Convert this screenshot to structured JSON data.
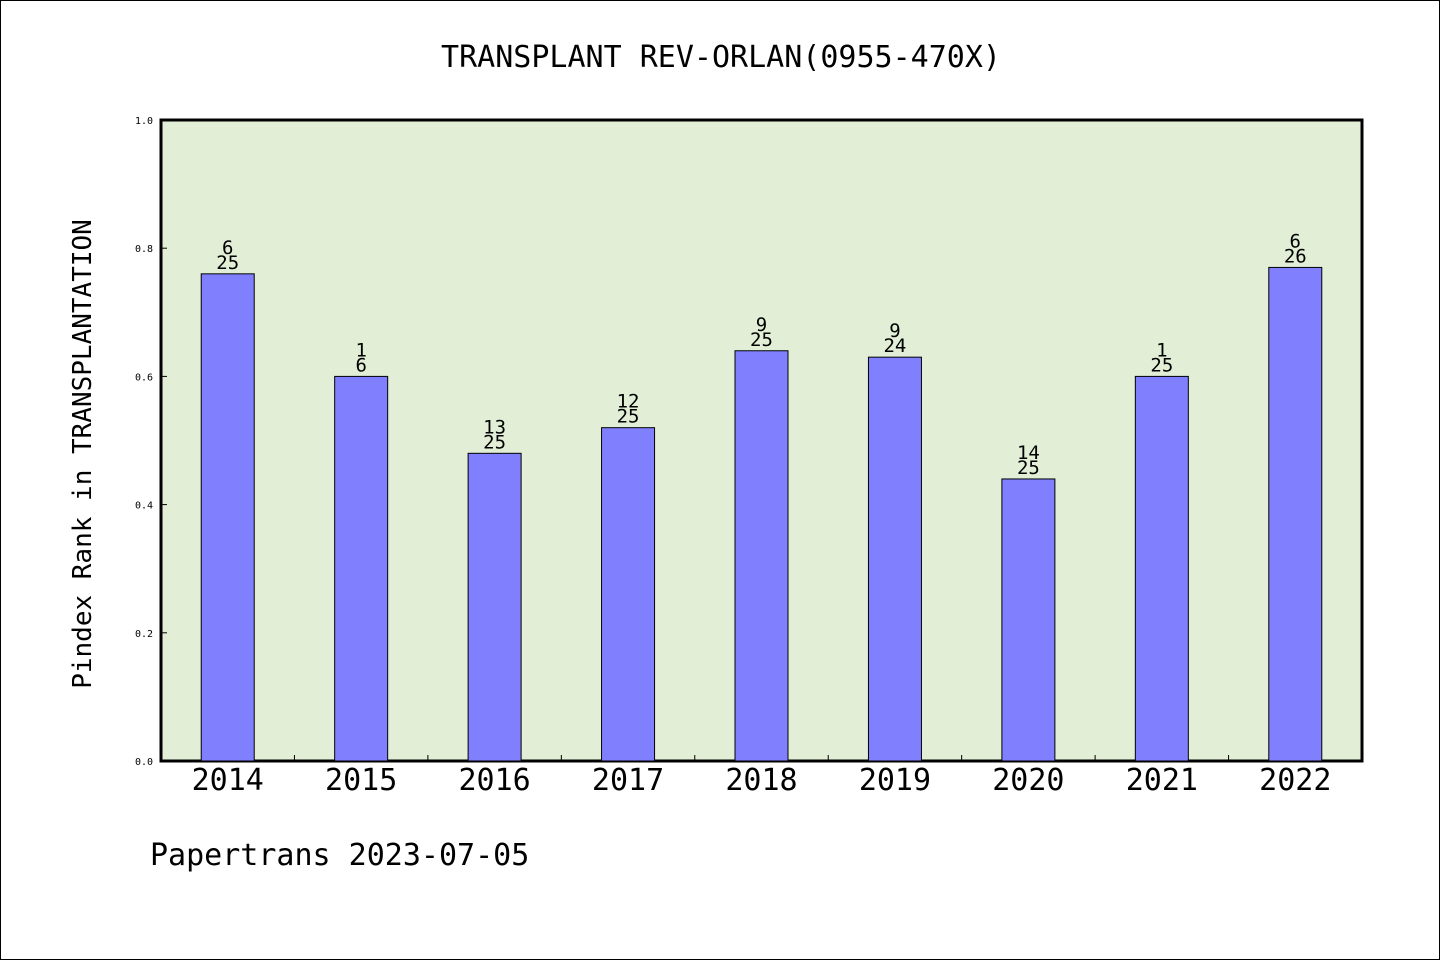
{
  "chart_data": {
    "type": "bar",
    "title": "TRANSPLANT REV-ORLAN(0955-470X)",
    "ylabel": "Pindex Rank in TRANSPLANTATION",
    "xlabel": "",
    "footer": "Papertrans 2023-07-05",
    "categories": [
      "2014",
      "2015",
      "2016",
      "2017",
      "2018",
      "2019",
      "2020",
      "2021",
      "2022"
    ],
    "values": [
      0.76,
      0.6,
      0.48,
      0.52,
      0.64,
      0.63,
      0.44,
      0.6,
      0.77
    ],
    "bar_labels": [
      {
        "rank": "6",
        "total": "25"
      },
      {
        "rank": "1",
        "total": "6"
      },
      {
        "rank": "13",
        "total": "25"
      },
      {
        "rank": "12",
        "total": "25"
      },
      {
        "rank": "9",
        "total": "25"
      },
      {
        "rank": "9",
        "total": "24"
      },
      {
        "rank": "14",
        "total": "25"
      },
      {
        "rank": "1",
        "total": "25"
      },
      {
        "rank": "6",
        "total": "26"
      }
    ],
    "ylim": [
      0,
      1.0
    ],
    "yticks": [
      "0.0",
      "0.2",
      "0.4",
      "0.6",
      "0.8",
      "1.0"
    ],
    "grid": false,
    "colors": {
      "plot_bg": "#e2efd6",
      "bar": "#8080ff",
      "border": "#000000"
    }
  }
}
